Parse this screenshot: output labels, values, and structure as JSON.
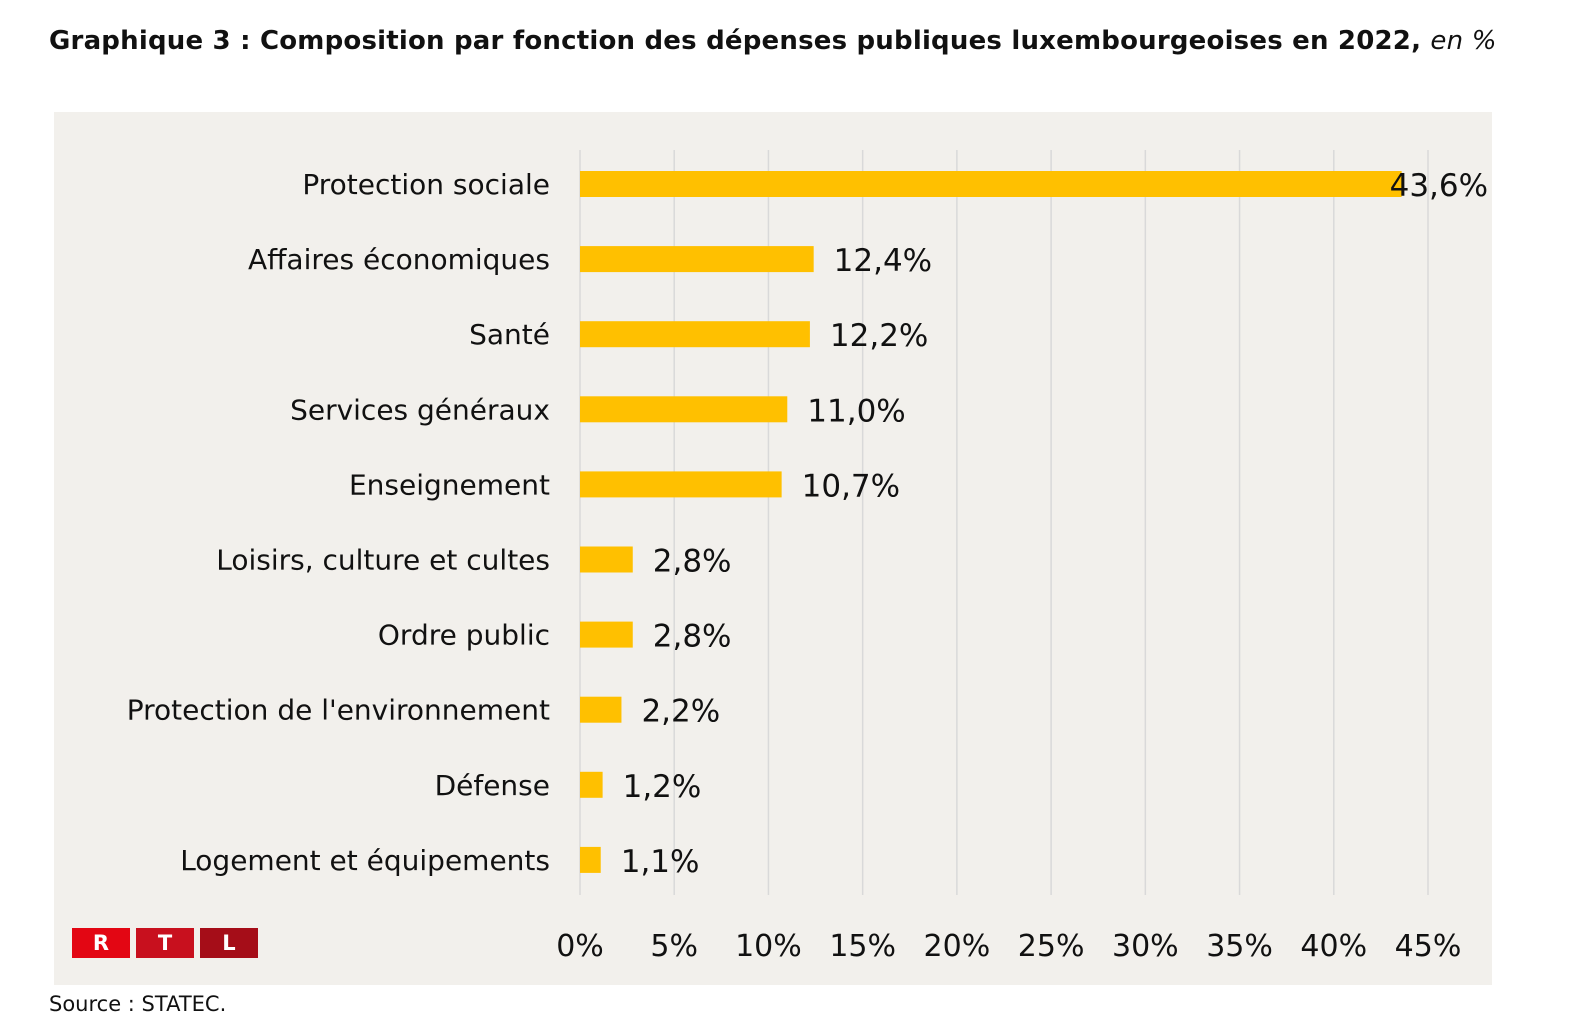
{
  "title": {
    "main": "Graphique 3 : Composition par fonction des dépenses publiques luxembourgeoises en 2022,",
    "unit": "en %"
  },
  "source": "Source : STATEC.",
  "logo": {
    "letters": [
      "R",
      "T",
      "L"
    ],
    "colors": [
      "#e30613",
      "#c8101e",
      "#a50d18"
    ]
  },
  "colors": {
    "bar": "#ffc000",
    "panel": "#f2f0ec",
    "grid": "#d9d9d9",
    "text": "#111111"
  },
  "chart_data": {
    "type": "bar",
    "orientation": "horizontal",
    "title": "Composition par fonction des dépenses publiques luxembourgeoises en 2022, en %",
    "categories": [
      "Protection sociale",
      "Affaires économiques",
      "Santé",
      "Services généraux",
      "Enseignement",
      "Loisirs, culture et cultes",
      "Ordre public",
      "Protection de l'environnement",
      "Défense",
      "Logement et équipements"
    ],
    "values": [
      43.6,
      12.4,
      12.2,
      11.0,
      10.7,
      2.8,
      2.8,
      2.2,
      1.2,
      1.1
    ],
    "data_labels": [
      "43,6%",
      "12,4%",
      "12,2%",
      "11,0%",
      "10,7%",
      "2,8%",
      "2,8%",
      "2,2%",
      "1,2%",
      "1,1%"
    ],
    "xlabel": "",
    "ylabel": "",
    "xlim": [
      0,
      45
    ],
    "x_ticks": [
      0,
      5,
      10,
      15,
      20,
      25,
      30,
      35,
      40,
      45
    ],
    "x_tick_labels": [
      "0%",
      "5%",
      "10%",
      "15%",
      "20%",
      "25%",
      "30%",
      "35%",
      "40%",
      "45%"
    ],
    "grid": "vertical",
    "legend": "none",
    "source": "STATEC"
  }
}
